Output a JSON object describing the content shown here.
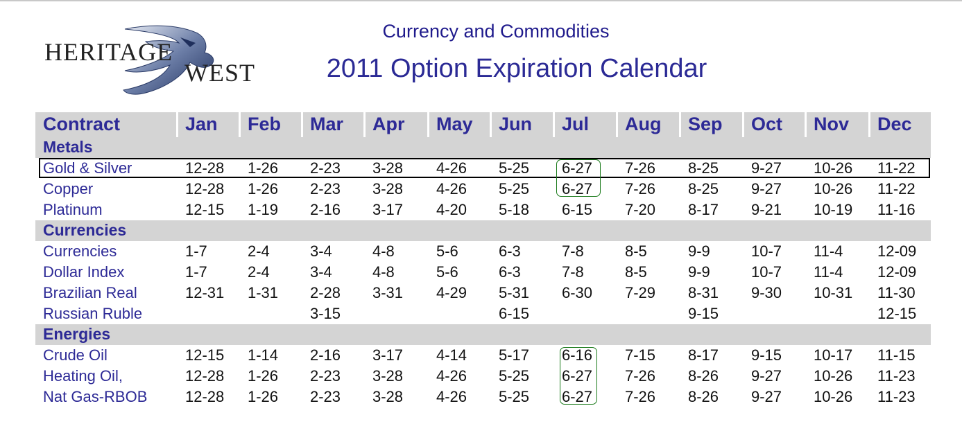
{
  "logo": {
    "line1": "HERITAGE",
    "line2": "WEST"
  },
  "header": {
    "subtitle": "Currency and Commodities",
    "title": "2011 Option Expiration Calendar"
  },
  "table": {
    "columns": [
      "Contract",
      "Jan",
      "Feb",
      "Mar",
      "Apr",
      "May",
      "Jun",
      "Jul",
      "Aug",
      "Sep",
      "Oct",
      "Nov",
      "Dec"
    ],
    "sections": [
      {
        "name": "Metals",
        "rows": [
          {
            "label": "Gold & Silver",
            "values": [
              "12-28",
              "1-26",
              "2-23",
              "3-28",
              "4-26",
              "5-25",
              "6-27",
              "7-26",
              "8-25",
              "9-27",
              "10-26",
              "11-22"
            ]
          },
          {
            "label": "Copper",
            "values": [
              "12-28",
              "1-26",
              "2-23",
              "3-28",
              "4-26",
              "5-25",
              "6-27",
              "7-26",
              "8-25",
              "9-27",
              "10-26",
              "11-22"
            ]
          },
          {
            "label": "Platinum",
            "values": [
              "12-15",
              "1-19",
              "2-16",
              "3-17",
              "4-20",
              "5-18",
              "6-15",
              "7-20",
              "8-17",
              "9-21",
              "10-19",
              "11-16"
            ]
          }
        ]
      },
      {
        "name": "Currencies",
        "rows": [
          {
            "label": "Currencies",
            "values": [
              "1-7",
              "2-4",
              "3-4",
              "4-8",
              "5-6",
              "6-3",
              "7-8",
              "8-5",
              "9-9",
              "10-7",
              "11-4",
              "12-09"
            ]
          },
          {
            "label": "Dollar Index",
            "values": [
              "1-7",
              "2-4",
              "3-4",
              "4-8",
              "5-6",
              "6-3",
              "7-8",
              "8-5",
              "9-9",
              "10-7",
              "11-4",
              "12-09"
            ]
          },
          {
            "label": "Brazilian Real",
            "values": [
              "12-31",
              "1-31",
              "2-28",
              "3-31",
              "4-29",
              "5-31",
              "6-30",
              "7-29",
              "8-31",
              "9-30",
              "10-31",
              "11-30"
            ]
          },
          {
            "label": "Russian Ruble",
            "values": [
              "",
              "",
              "3-15",
              "",
              "",
              "6-15",
              "",
              "",
              "9-15",
              "",
              "",
              "12-15"
            ]
          }
        ]
      },
      {
        "name": "Energies",
        "rows": [
          {
            "label": "Crude Oil",
            "values": [
              "12-15",
              "1-14",
              "2-16",
              "3-17",
              "4-14",
              "5-17",
              "6-16",
              "7-15",
              "8-17",
              "9-15",
              "10-17",
              "11-15"
            ]
          },
          {
            "label": "Heating Oil,",
            "values": [
              "12-28",
              "1-26",
              "2-23",
              "3-28",
              "4-26",
              "5-25",
              "6-27",
              "7-26",
              "8-26",
              "9-27",
              "10-26",
              "11-23"
            ]
          },
          {
            "label": "Nat Gas-RBOB",
            "values": [
              "12-28",
              "1-26",
              "2-23",
              "3-28",
              "4-26",
              "5-25",
              "6-27",
              "7-26",
              "8-26",
              "9-27",
              "10-26",
              "11-23"
            ]
          }
        ]
      }
    ]
  },
  "colors": {
    "title": "#2b2a95",
    "section_bg": "#d4d4d4",
    "highlight_box": "#1a7a1a"
  }
}
